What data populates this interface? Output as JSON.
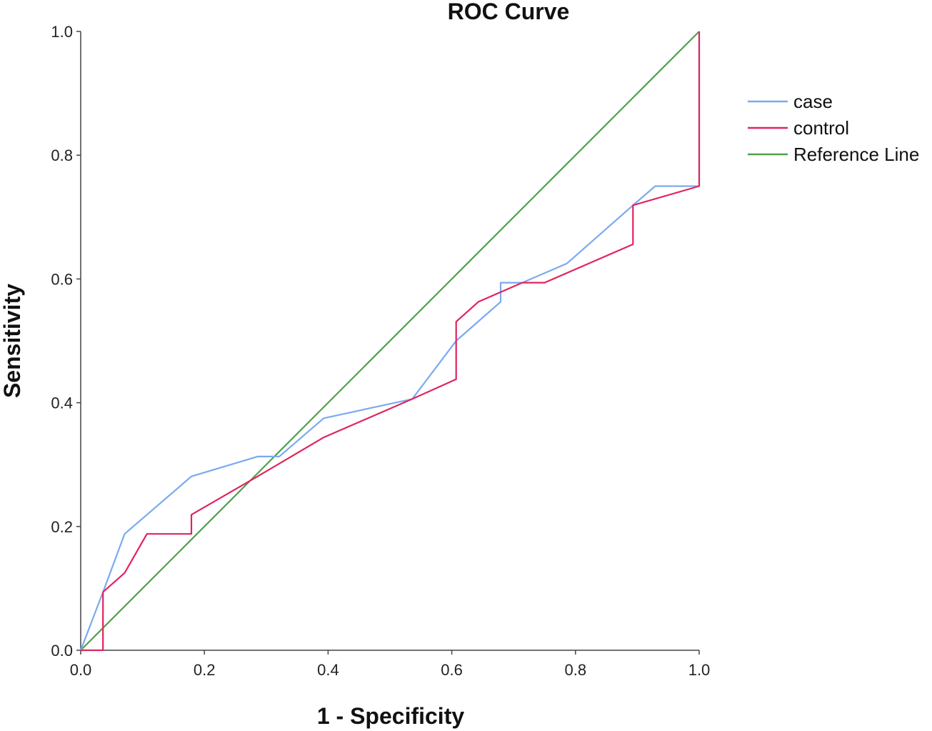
{
  "chart_data": {
    "type": "line",
    "title": "ROC Curve",
    "xlabel": "1 - Specificity",
    "ylabel": "Sensitivity",
    "xlim": [
      0.0,
      1.0
    ],
    "ylim": [
      0.0,
      1.0
    ],
    "xticks": [
      "0.0",
      "0.2",
      "0.4",
      "0.6",
      "0.8",
      "1.0"
    ],
    "yticks": [
      "0.0",
      "0.2",
      "0.4",
      "0.6",
      "0.8",
      "1.0"
    ],
    "grid": false,
    "legend_position": "right",
    "series": [
      {
        "name": "case",
        "color": "#7aaaf0",
        "points": [
          [
            0.0,
            0.0
          ],
          [
            0.036,
            0.094
          ],
          [
            0.071,
            0.188
          ],
          [
            0.179,
            0.281
          ],
          [
            0.286,
            0.313
          ],
          [
            0.321,
            0.313
          ],
          [
            0.393,
            0.375
          ],
          [
            0.536,
            0.406
          ],
          [
            0.607,
            0.5
          ],
          [
            0.679,
            0.563
          ],
          [
            0.679,
            0.594
          ],
          [
            0.714,
            0.594
          ],
          [
            0.786,
            0.625
          ],
          [
            0.893,
            0.719
          ],
          [
            0.929,
            0.75
          ],
          [
            1.0,
            0.75
          ],
          [
            1.0,
            1.0
          ]
        ]
      },
      {
        "name": "control",
        "color": "#e0245e",
        "points": [
          [
            0.0,
            0.0
          ],
          [
            0.036,
            0.0
          ],
          [
            0.036,
            0.094
          ],
          [
            0.071,
            0.125
          ],
          [
            0.107,
            0.188
          ],
          [
            0.179,
            0.188
          ],
          [
            0.179,
            0.219
          ],
          [
            0.286,
            0.281
          ],
          [
            0.393,
            0.344
          ],
          [
            0.536,
            0.406
          ],
          [
            0.607,
            0.438
          ],
          [
            0.607,
            0.531
          ],
          [
            0.643,
            0.563
          ],
          [
            0.714,
            0.594
          ],
          [
            0.75,
            0.594
          ],
          [
            0.893,
            0.656
          ],
          [
            0.893,
            0.719
          ],
          [
            1.0,
            0.75
          ],
          [
            1.0,
            1.0
          ]
        ]
      },
      {
        "name": "Reference Line",
        "color": "#4fa04a",
        "points": [
          [
            0.0,
            0.0
          ],
          [
            1.0,
            1.0
          ]
        ]
      }
    ]
  }
}
